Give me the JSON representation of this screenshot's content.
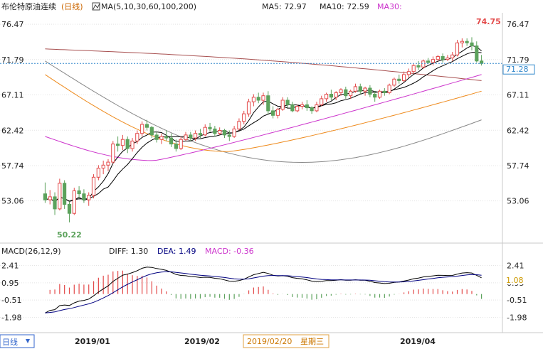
{
  "header": {
    "title": "布伦特原油连续",
    "period_tag": "(日线)",
    "ma_spec": "MA(5,10,30,60,100,200)",
    "ma5_label": "MA5: 72.97",
    "ma10_label": "MA10: 72.59",
    "ma30_label": "MA30:"
  },
  "macd_header": {
    "spec": "MACD(26,12,9)",
    "diff_label": "DIFF: 1.30",
    "dea_label": "DEA: 1.49",
    "macd_label": "MACD: -0.36"
  },
  "footer": {
    "period_button": "日线",
    "date_labels": [
      "2019/01",
      "2019/02",
      "2019/04"
    ],
    "cursor_date": "2019/02/20",
    "cursor_weekday": "星期三"
  },
  "colors": {
    "up": "#e34a4a",
    "down": "#5ca25c",
    "ma5": "#000000",
    "ma10": "#000000",
    "ma30": "#cc33cc",
    "ma60": "#ee8a1c",
    "ma100": "#888888",
    "ma200": "#a85050",
    "diff": "#000000",
    "dea": "#000080",
    "current_line": "#3388cc"
  },
  "chart_data": [
    {
      "type": "candlestick",
      "title": "布伦特原油连续",
      "ylim": [
        48.6,
        77.8
      ],
      "y_ticks": [
        "76.47",
        "71.79",
        "67.11",
        "62.42",
        "57.74",
        "53.06"
      ],
      "current_price_label": "71.28",
      "current_price": 71.28,
      "max_label": "74.75",
      "min_label": "50.22",
      "candles": [
        [
          54.0,
          55.5,
          52.8,
          53.2
        ],
        [
          53.2,
          54.5,
          52.6,
          53.6
        ],
        [
          53.6,
          54.2,
          51.2,
          52.0
        ],
        [
          52.0,
          56.0,
          51.8,
          55.4
        ],
        [
          55.4,
          55.8,
          52.0,
          52.6
        ],
        [
          52.6,
          53.0,
          50.22,
          51.4
        ],
        [
          51.4,
          54.8,
          51.2,
          54.4
        ],
        [
          54.4,
          55.0,
          53.4,
          54.0
        ],
        [
          54.0,
          54.6,
          52.8,
          53.2
        ],
        [
          53.2,
          54.2,
          52.4,
          53.8
        ],
        [
          53.8,
          56.6,
          53.4,
          56.2
        ],
        [
          56.2,
          57.8,
          55.8,
          57.4
        ],
        [
          57.4,
          58.4,
          56.6,
          57.8
        ],
        [
          57.8,
          58.6,
          57.0,
          58.2
        ],
        [
          58.2,
          61.0,
          58.0,
          60.6
        ],
        [
          60.6,
          61.6,
          59.6,
          60.4
        ],
        [
          60.4,
          61.8,
          59.8,
          61.2
        ],
        [
          61.2,
          61.6,
          59.4,
          60.0
        ],
        [
          60.0,
          61.4,
          59.6,
          61.0
        ],
        [
          61.0,
          62.4,
          60.6,
          62.0
        ],
        [
          62.0,
          63.6,
          61.6,
          63.2
        ],
        [
          63.2,
          63.8,
          62.4,
          62.8
        ],
        [
          62.8,
          63.0,
          61.4,
          61.8
        ],
        [
          61.8,
          62.2,
          60.8,
          61.2
        ],
        [
          61.2,
          62.0,
          60.6,
          61.6
        ],
        [
          61.6,
          62.4,
          61.0,
          61.4
        ],
        [
          61.4,
          62.0,
          60.2,
          60.6
        ],
        [
          60.6,
          61.2,
          59.6,
          60.0
        ],
        [
          60.0,
          61.6,
          59.8,
          61.2
        ],
        [
          61.2,
          62.2,
          61.0,
          61.8
        ],
        [
          61.8,
          62.2,
          61.0,
          61.4
        ],
        [
          61.4,
          62.4,
          61.0,
          62.0
        ],
        [
          62.0,
          62.6,
          61.4,
          61.8
        ],
        [
          61.8,
          63.2,
          61.6,
          62.8
        ],
        [
          62.8,
          63.4,
          62.2,
          62.6
        ],
        [
          62.6,
          63.0,
          61.6,
          62.0
        ],
        [
          62.0,
          62.8,
          61.8,
          62.4
        ],
        [
          62.4,
          62.6,
          61.4,
          61.8
        ],
        [
          61.8,
          62.4,
          61.0,
          61.6
        ],
        [
          61.6,
          63.0,
          61.4,
          62.6
        ],
        [
          62.6,
          64.0,
          62.4,
          63.6
        ],
        [
          63.6,
          65.0,
          63.2,
          64.6
        ],
        [
          64.6,
          66.6,
          64.2,
          66.2
        ],
        [
          66.2,
          67.2,
          65.6,
          66.8
        ],
        [
          66.8,
          67.4,
          66.0,
          66.4
        ],
        [
          66.4,
          67.4,
          65.8,
          67.0
        ],
        [
          67.0,
          67.6,
          64.6,
          65.0
        ],
        [
          65.0,
          65.6,
          64.0,
          64.4
        ],
        [
          64.4,
          65.4,
          64.0,
          65.2
        ],
        [
          65.2,
          66.8,
          65.0,
          66.4
        ],
        [
          66.4,
          66.8,
          65.4,
          65.8
        ],
        [
          65.8,
          66.2,
          64.8,
          65.0
        ],
        [
          65.0,
          65.8,
          64.8,
          65.6
        ],
        [
          65.6,
          66.2,
          65.2,
          65.8
        ],
        [
          65.8,
          66.4,
          65.0,
          65.4
        ],
        [
          65.4,
          65.6,
          64.6,
          65.0
        ],
        [
          65.0,
          66.2,
          64.8,
          65.8
        ],
        [
          65.8,
          67.0,
          65.6,
          66.6
        ],
        [
          66.6,
          67.4,
          66.2,
          67.2
        ],
        [
          67.2,
          67.8,
          66.4,
          66.8
        ],
        [
          66.8,
          67.6,
          66.4,
          67.4
        ],
        [
          67.4,
          68.0,
          67.0,
          67.8
        ],
        [
          67.8,
          68.2,
          66.6,
          67.0
        ],
        [
          67.0,
          67.8,
          66.6,
          67.6
        ],
        [
          67.6,
          68.6,
          67.4,
          68.2
        ],
        [
          68.2,
          68.6,
          67.2,
          67.6
        ],
        [
          67.6,
          68.2,
          67.0,
          68.0
        ],
        [
          68.0,
          68.4,
          66.8,
          67.2
        ],
        [
          67.2,
          67.6,
          66.2,
          66.8
        ],
        [
          66.8,
          67.8,
          66.6,
          67.6
        ],
        [
          67.6,
          68.0,
          67.0,
          67.4
        ],
        [
          67.4,
          68.6,
          67.2,
          68.4
        ],
        [
          68.4,
          69.4,
          68.2,
          69.2
        ],
        [
          69.2,
          69.8,
          68.6,
          69.0
        ],
        [
          69.0,
          70.2,
          68.8,
          69.8
        ],
        [
          69.8,
          70.6,
          69.4,
          70.2
        ],
        [
          70.2,
          71.2,
          70.0,
          71.0
        ],
        [
          71.0,
          71.6,
          70.4,
          70.8
        ],
        [
          70.8,
          71.8,
          70.6,
          71.6
        ],
        [
          71.6,
          72.0,
          71.2,
          71.4
        ],
        [
          71.4,
          72.2,
          71.0,
          71.8
        ],
        [
          71.8,
          72.4,
          71.6,
          72.2
        ],
        [
          72.2,
          72.6,
          71.4,
          71.8
        ],
        [
          71.8,
          72.4,
          71.6,
          72.0
        ],
        [
          72.0,
          72.8,
          71.6,
          72.4
        ],
        [
          72.4,
          74.4,
          72.2,
          74.0
        ],
        [
          74.0,
          74.6,
          73.4,
          74.2
        ],
        [
          74.2,
          74.6,
          73.6,
          74.0
        ],
        [
          74.0,
          74.75,
          73.0,
          73.6
        ],
        [
          73.6,
          74.2,
          71.4,
          71.6
        ],
        [
          71.6,
          72.4,
          71.0,
          71.28
        ]
      ]
    },
    {
      "type": "macd",
      "ylim": [
        -2.9,
        3.1
      ],
      "y_ticks": [
        "2.41",
        "0.95",
        "-0.51",
        "-1.98"
      ],
      "dea_marker_label": "1.08",
      "dea_marker": 1.08
    }
  ]
}
